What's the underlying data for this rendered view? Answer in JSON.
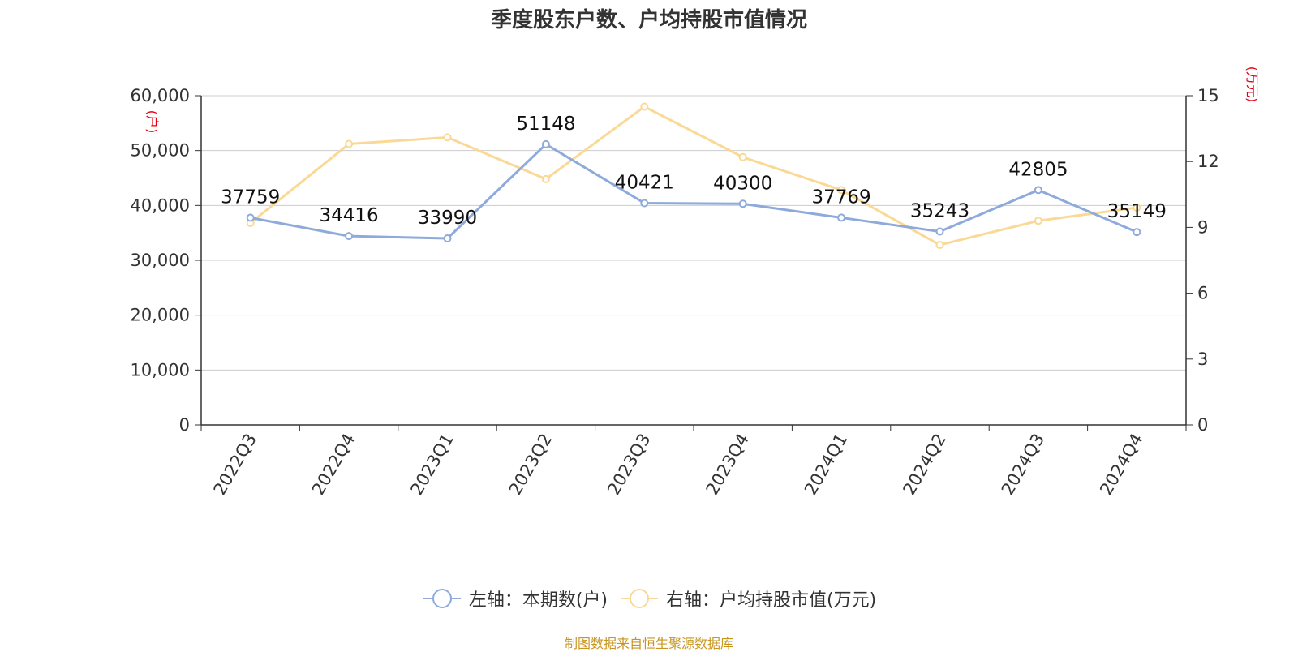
{
  "chart_data": {
    "type": "line",
    "title": "季度股东户数、户均持股市值情况",
    "categories": [
      "2022Q3",
      "2022Q4",
      "2023Q1",
      "2023Q2",
      "2023Q3",
      "2023Q4",
      "2024Q1",
      "2024Q2",
      "2024Q3",
      "2024Q4"
    ],
    "series": [
      {
        "name": "左轴：本期数(户)",
        "axis": "left",
        "color": "#8eaadb",
        "values": [
          37759,
          34416,
          33990,
          51148,
          40421,
          40300,
          37769,
          35243,
          42805,
          35149
        ],
        "data_labels": [
          "37759",
          "34416",
          "33990",
          "51148",
          "40421",
          "40300",
          "37769",
          "35243",
          "42805",
          "35149"
        ]
      },
      {
        "name": "右轴：户均持股市值(万元)",
        "axis": "right",
        "color": "#fad996",
        "values": [
          9.2,
          12.8,
          13.1,
          11.2,
          14.5,
          12.2,
          10.7,
          8.2,
          9.3,
          9.9
        ]
      }
    ],
    "y_left": {
      "unit_label": "(户)",
      "range": [
        0,
        60000
      ],
      "ticks": [
        0,
        10000,
        20000,
        30000,
        40000,
        50000,
        60000
      ],
      "tick_labels": [
        "0",
        "10,000",
        "20,000",
        "30,000",
        "40,000",
        "50,000",
        "60,000"
      ]
    },
    "y_right": {
      "unit_label": "(万元)",
      "range": [
        0,
        15
      ],
      "ticks": [
        0,
        3,
        6,
        9,
        12,
        15
      ],
      "tick_labels": [
        "0",
        "3",
        "6",
        "9",
        "12",
        "15"
      ]
    },
    "grid": true,
    "legend_position": "bottom"
  },
  "source": "制图数据来自恒生聚源数据库",
  "colors": {
    "unit_label": "#e60012",
    "source": "#c8951f",
    "text": "#333333",
    "axis": "#333333",
    "grid": "#cccccc"
  }
}
